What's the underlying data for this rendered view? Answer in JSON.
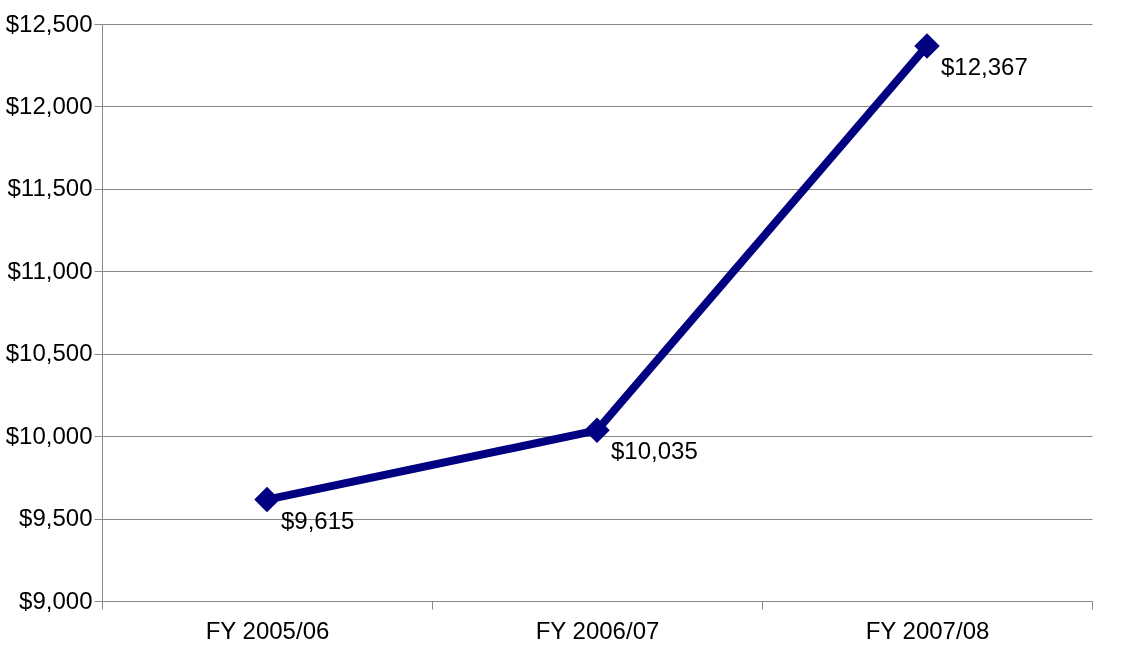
{
  "chart_data": {
    "type": "line",
    "categories": [
      "FY 2005/06",
      "FY 2006/07",
      "FY 2007/08"
    ],
    "series": [
      {
        "color": "#000080",
        "values": [
          9615,
          10035,
          12367
        ],
        "value_labels": [
          "$9,615",
          "$10,035",
          "$12,367"
        ]
      }
    ],
    "ylim": [
      9000,
      12500
    ],
    "yticks": [
      {
        "value": 9000,
        "label": "$9,000"
      },
      {
        "value": 9500,
        "label": "$9,500"
      },
      {
        "value": 10000,
        "label": "$10,000"
      },
      {
        "value": 10500,
        "label": "$10,500"
      },
      {
        "value": 11000,
        "label": "$11,000"
      },
      {
        "value": 11500,
        "label": "$11,500"
      },
      {
        "value": 12000,
        "label": "$12,000"
      },
      {
        "value": 12500,
        "label": "$12,500"
      }
    ],
    "grid": "y",
    "marker": "diamond",
    "line_style": "solid",
    "legend": false
  }
}
